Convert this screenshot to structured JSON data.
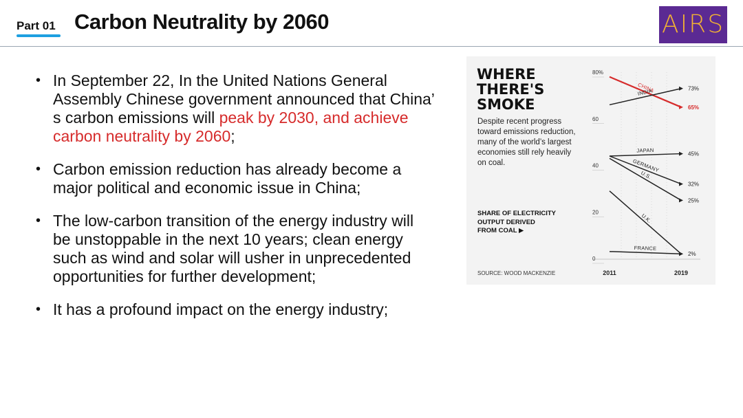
{
  "header": {
    "part_label": "Part 01",
    "title": "Carbon Neutrality by 2060",
    "logo_text": "AIRS",
    "accent_color": "#1d9fe0",
    "logo_bg": "#5b2a93"
  },
  "bullets": [
    {
      "before": "In September 22, In the United Nations General Assembly Chinese government announced that China’ s carbon emissions will ",
      "highlight": "peak by 2030, and achieve carbon neutrality by 2060",
      "after": ";"
    },
    {
      "before": "Carbon emission reduction has already become a major political and economic issue in China;",
      "highlight": "",
      "after": ""
    },
    {
      "before": "The low-carbon transition of the energy industry will be unstoppable in the next 10 years; clean energy such as wind and solar will usher in unprecedented opportunities for further development;",
      "highlight": "",
      "after": ""
    },
    {
      "before": "It has a profound impact on the energy industry;",
      "highlight": "",
      "after": ""
    }
  ],
  "highlight_color": "#d62b2b",
  "figure": {
    "title_lines": [
      "WHERE",
      "THERE'S",
      "SMOKE"
    ],
    "description": "Despite recent progress toward emissions reduction, many of the world’s largest economies still rely heavily on coal.",
    "share_lines": [
      "SHARE OF ELECTRICITY",
      "OUTPUT DERIVED",
      "FROM COAL ▶"
    ],
    "source": "SOURCE: WOOD MACKENZIE"
  },
  "chart_data": {
    "type": "line",
    "x": [
      2011,
      2019
    ],
    "x_tick_labels": [
      "2011",
      "2019"
    ],
    "y_ticks": [
      "80%",
      "60",
      "40",
      "20",
      "0"
    ],
    "ylim": [
      0,
      80
    ],
    "series": [
      {
        "name": "CHINA",
        "values": [
          78,
          65
        ],
        "end_label": "65%",
        "color": "#d62b2b"
      },
      {
        "name": "INDIA",
        "values": [
          66,
          73
        ],
        "end_label": "73%",
        "color": "#222222"
      },
      {
        "name": "JAPAN",
        "values": [
          44,
          45
        ],
        "end_label": "45%",
        "color": "#222222"
      },
      {
        "name": "GERMANY",
        "values": [
          44,
          32
        ],
        "end_label": "32%",
        "color": "#222222"
      },
      {
        "name": "U.S.",
        "values": [
          43,
          25
        ],
        "end_label": "25%",
        "color": "#222222"
      },
      {
        "name": "U.K.",
        "values": [
          29,
          2
        ],
        "end_label": "2%",
        "color": "#222222"
      },
      {
        "name": "FRANCE",
        "values": [
          3,
          2
        ],
        "end_label": "",
        "color": "#222222"
      }
    ]
  }
}
